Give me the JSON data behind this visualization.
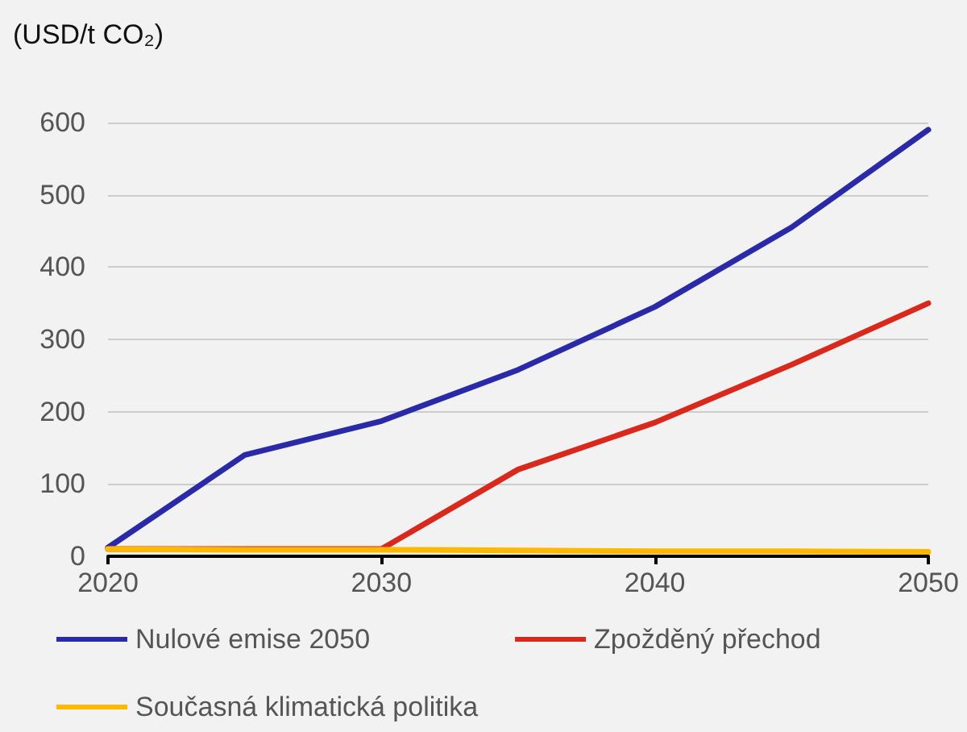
{
  "chart_data": {
    "type": "line",
    "ylabel": "(USD/t CO₂)",
    "x": [
      2020,
      2025,
      2030,
      2035,
      2040,
      2045,
      2050
    ],
    "series": [
      {
        "name": "Nulové emise 2050",
        "color": "#2a2aa8",
        "values": [
          12,
          140,
          187,
          258,
          345,
          455,
          590
        ]
      },
      {
        "name": "Zpožděný přechod",
        "color": "#d9291c",
        "values": [
          10,
          10,
          10,
          120,
          185,
          265,
          350
        ]
      },
      {
        "name": "Současná klimatická politika",
        "color": "#ffb800",
        "values": [
          10,
          9,
          9,
          8,
          7,
          7,
          6
        ]
      }
    ],
    "xlim": [
      2020,
      2050
    ],
    "xticks": [
      2020,
      2030,
      2040,
      2050
    ],
    "ylim": [
      0,
      600
    ],
    "yticks": [
      0,
      100,
      200,
      300,
      400,
      500,
      600
    ],
    "grid": "y",
    "legend": "bottom",
    "marker": "none",
    "line_style": "solid"
  }
}
